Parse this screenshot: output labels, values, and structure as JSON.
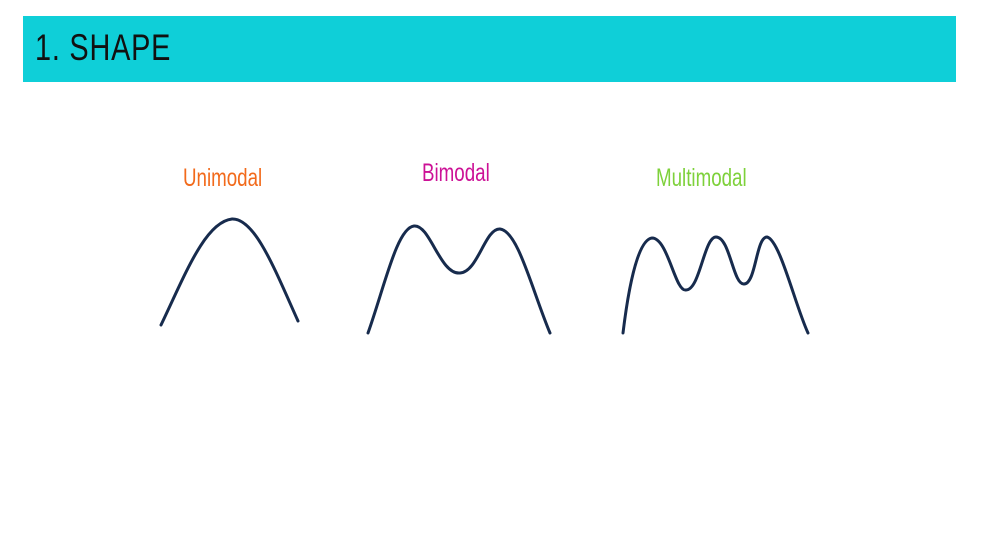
{
  "slide": {
    "title": "1. SHAPE",
    "title_bar_color": "#0fcfd8"
  },
  "shapes": [
    {
      "label": "Unimodal",
      "color": "#f26a1b",
      "peaks": 1
    },
    {
      "label": "Bimodal",
      "color": "#cc1196",
      "peaks": 2
    },
    {
      "label": "Multimodal",
      "color": "#7ed13b",
      "peaks": 3
    }
  ],
  "curve_color": "#172b4d"
}
